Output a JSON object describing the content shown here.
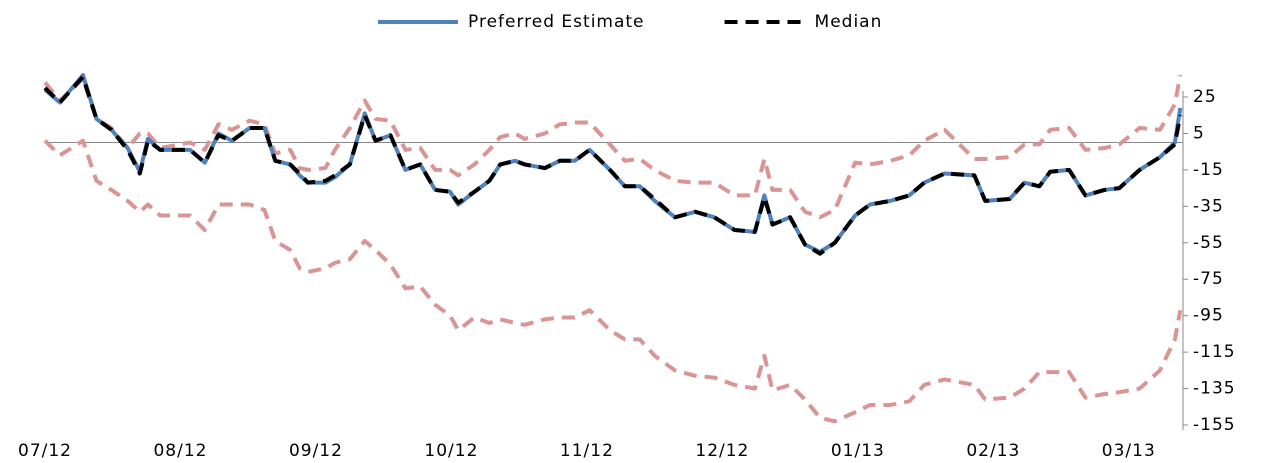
{
  "chart_data": {
    "type": "line",
    "x": [
      0,
      0.11,
      0.28,
      0.38,
      0.49,
      0.61,
      0.7,
      0.76,
      0.85,
      1.07,
      1.18,
      1.28,
      1.38,
      1.51,
      1.62,
      1.7,
      1.81,
      1.88,
      1.94,
      2.07,
      2.14,
      2.25,
      2.36,
      2.44,
      2.55,
      2.66,
      2.77,
      2.88,
      2.99,
      3.05,
      3.17,
      3.28,
      3.36,
      3.47,
      3.54,
      3.69,
      3.8,
      3.91,
      4.02,
      4.17,
      4.28,
      4.39,
      4.5,
      4.65,
      4.8,
      4.94,
      5.09,
      5.24,
      5.31,
      5.37,
      5.5,
      5.61,
      5.72,
      5.83,
      5.98,
      6.09,
      6.24,
      6.38,
      6.49,
      6.64,
      6.86,
      6.94,
      7.12,
      7.23,
      7.34,
      7.42,
      7.56,
      7.68,
      7.82,
      7.93,
      8.08,
      8.23,
      8.34,
      8.38
    ],
    "series": [
      {
        "color": "#d99594",
        "dash": true,
        "values": [
          33,
          23,
          35,
          13,
          8,
          -3,
          5,
          5,
          -3,
          0,
          -4,
          10,
          7,
          12,
          10,
          -6,
          -4,
          -14,
          -15,
          -14,
          -4,
          8,
          23,
          13,
          12,
          -4,
          -3,
          -15,
          -15,
          -18,
          -12,
          -4,
          3,
          5,
          2,
          5,
          10,
          11,
          11,
          -1,
          -10,
          -9,
          -15,
          -21,
          -22,
          -22,
          -29,
          -29,
          -9,
          -26,
          -26,
          -38,
          -41,
          -37,
          -11,
          -12,
          -10,
          -7,
          1,
          7,
          -9,
          -9,
          -8,
          -1,
          -1,
          7,
          8,
          -4,
          -3,
          -1,
          8,
          7,
          21,
          37
        ]
      },
      {
        "color": "#d99594",
        "dash": true,
        "values": [
          1,
          -7,
          1,
          -21,
          -26,
          -32,
          -38,
          -34,
          -40,
          -40,
          -48,
          -34,
          -34,
          -34,
          -37,
          -54,
          -59,
          -69,
          -71,
          -69,
          -66,
          -64,
          -54,
          -59,
          -67,
          -80,
          -79,
          -89,
          -95,
          -103,
          -96,
          -99,
          -97,
          -99,
          -100,
          -97,
          -96,
          -96,
          -92,
          -103,
          -108,
          -108,
          -117,
          -125,
          -128,
          -129,
          -133,
          -135,
          -117,
          -136,
          -133,
          -141,
          -151,
          -153,
          -148,
          -144,
          -144,
          -142,
          -133,
          -130,
          -133,
          -141,
          -140,
          -135,
          -126,
          -126,
          -126,
          -140,
          -138,
          -137,
          -135,
          -125,
          -108,
          -92
        ]
      },
      {
        "name": "Preferred Estimate",
        "color": "#4f81bd",
        "dash": false,
        "values": [
          29,
          22,
          37,
          13,
          7,
          -3,
          -16,
          2,
          -4,
          -4,
          -11,
          5,
          1,
          8,
          8,
          -10,
          -12,
          -18,
          -22,
          -22,
          -19,
          -12,
          16,
          1,
          4,
          -15,
          -12,
          -26,
          -27,
          -34,
          -27,
          -21,
          -12,
          -10,
          -12,
          -14,
          -10,
          -10,
          -4,
          -15,
          -24,
          -24,
          -32,
          -41,
          -38,
          -41,
          -48,
          -49,
          -29,
          -45,
          -41,
          -56,
          -60,
          -55,
          -40,
          -34,
          -32,
          -29,
          -22,
          -17,
          -18,
          -32,
          -31,
          -22,
          -24,
          -16,
          -15,
          -29,
          -26,
          -25,
          -15,
          -8,
          0,
          19
        ]
      },
      {
        "name": "Median",
        "color": "#000000",
        "dash": true,
        "values": [
          30,
          22,
          36,
          13,
          7,
          -4,
          -17,
          1,
          -4,
          -4,
          -11,
          4,
          1,
          8,
          8,
          -10,
          -12,
          -17,
          -22,
          -21,
          -18,
          -12,
          15,
          1,
          4,
          -15,
          -12,
          -26,
          -27,
          -33,
          -27,
          -21,
          -12,
          -10,
          -12,
          -14,
          -10,
          -10,
          -4,
          -15,
          -24,
          -24,
          -31,
          -41,
          -38,
          -41,
          -48,
          -49,
          -30,
          -45,
          -41,
          -56,
          -61,
          -55,
          -40,
          -34,
          -32,
          -29,
          -22,
          -17,
          -18,
          -32,
          -31,
          -22,
          -24,
          -16,
          -15,
          -29,
          -26,
          -25,
          -15,
          -8,
          -1,
          15
        ]
      }
    ],
    "xlim": [
      0,
      8.4
    ],
    "xticks": [
      {
        "value": 0,
        "label": "07/12"
      },
      {
        "value": 1,
        "label": "08/12"
      },
      {
        "value": 2,
        "label": "09/12"
      },
      {
        "value": 3,
        "label": "10/12"
      },
      {
        "value": 4,
        "label": "11/12"
      },
      {
        "value": 5,
        "label": "12/12"
      },
      {
        "value": 6,
        "label": "01/13"
      },
      {
        "value": 7,
        "label": "02/13"
      },
      {
        "value": 8,
        "label": "03/13"
      }
    ],
    "ylim": [
      -155,
      25
    ],
    "yticks": [
      25,
      5,
      -15,
      -35,
      -55,
      -75,
      -95,
      -115,
      -135,
      -155
    ],
    "y_axis_side": "right"
  }
}
